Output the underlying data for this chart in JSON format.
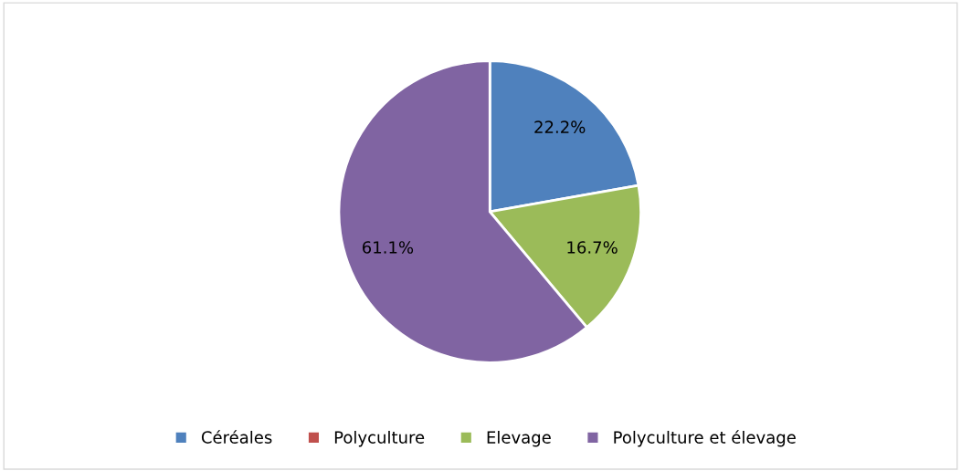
{
  "chart_data": {
    "type": "pie",
    "categories": [
      "Céréales",
      "Polyculture",
      "Elevage",
      "Polyculture et élevage"
    ],
    "values": [
      22.2,
      0,
      16.7,
      61.1
    ],
    "colors": [
      "#4f81bd",
      "#c0504d",
      "#9bbb59",
      "#8064a2"
    ],
    "value_labels": [
      "22.2%",
      null,
      "16.7%",
      "61.1%"
    ],
    "legend": "bottom"
  }
}
